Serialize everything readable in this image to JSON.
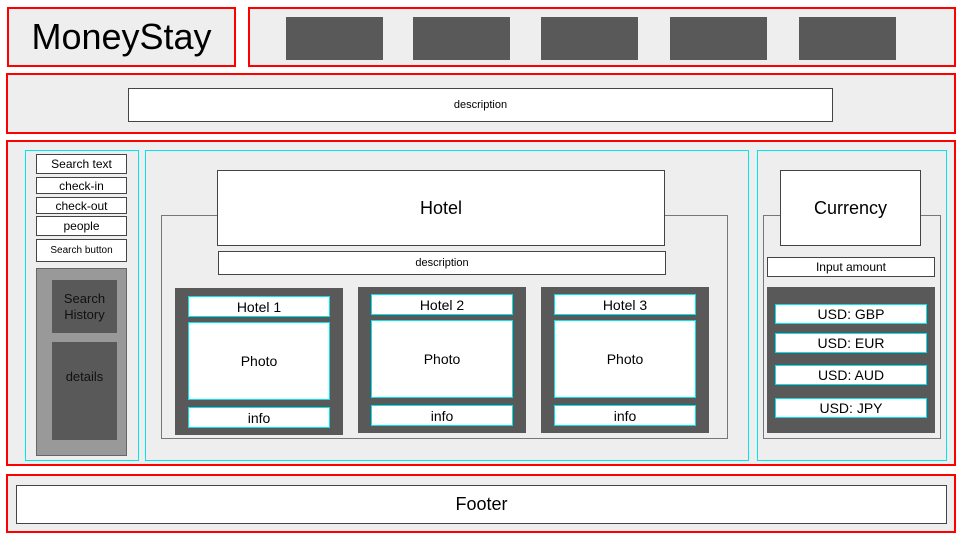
{
  "logo": {
    "text": "MoneyStay"
  },
  "nav": {
    "items": [
      "",
      "",
      "",
      "",
      ""
    ]
  },
  "banner": {
    "description": "description"
  },
  "search": {
    "fields": [
      "Search text",
      "check-in",
      "check-out",
      "people"
    ],
    "button": "Search button",
    "history": {
      "title": "Search\nHistory",
      "details": "details"
    }
  },
  "hotel": {
    "title": "Hotel",
    "description": "description",
    "cards": [
      {
        "name": "Hotel 1",
        "photo": "Photo",
        "info": "info"
      },
      {
        "name": "Hotel 2",
        "photo": "Photo",
        "info": "info"
      },
      {
        "name": "Hotel 3",
        "photo": "Photo",
        "info": "info"
      }
    ]
  },
  "currency": {
    "title": "Currency",
    "input": "Input amount",
    "rates": [
      "USD: GBP",
      "USD: EUR",
      "USD: AUD",
      "USD: JPY"
    ]
  },
  "footer": {
    "text": "Footer"
  },
  "colors": {
    "section_border": "#ff0000",
    "panel_border": "#00e5ee",
    "dark_block": "#595959",
    "section_bg": "#eeeeee"
  }
}
